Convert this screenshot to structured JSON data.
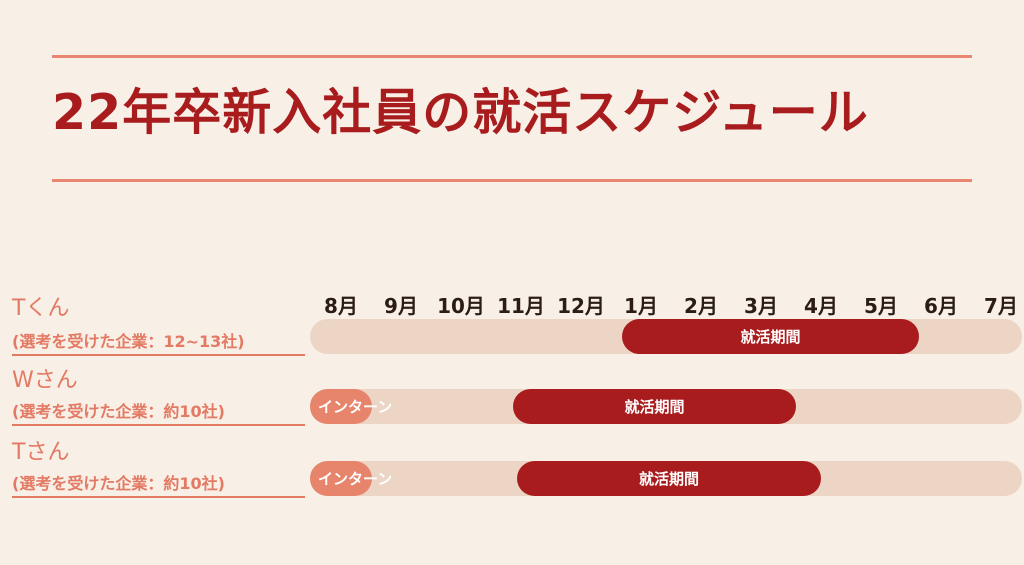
{
  "title": "22年卒新入社員の就活スケジュール",
  "months": [
    "8月",
    "9月",
    "10月",
    "11月",
    "12月",
    "1月",
    "2月",
    "3月",
    "4月",
    "5月",
    "6月",
    "7月"
  ],
  "persons": [
    {
      "name": "Tくん",
      "note": "(選考を受けた企業：12~13社)",
      "segments": [
        {
          "type": "job",
          "label": "就活期間",
          "start_month": "1月",
          "end_month": "5月"
        }
      ]
    },
    {
      "name": "Wさん",
      "note": "(選考を受けた企業：約10社)",
      "segments": [
        {
          "type": "intern",
          "label": "インターン",
          "start_month": "8月",
          "end_month": "8月"
        },
        {
          "type": "job",
          "label": "就活期間",
          "start_month": "11月",
          "end_month": "3月"
        }
      ]
    },
    {
      "name": "Tさん",
      "note": "(選考を受けた企業：約10社)",
      "segments": [
        {
          "type": "intern",
          "label": "インターン",
          "start_month": "8月",
          "end_month": "8月"
        },
        {
          "type": "job",
          "label": "就活期間",
          "start_month": "11月",
          "end_month": "4月"
        }
      ]
    }
  ],
  "colors": {
    "background": "#f8efe6",
    "title": "#a81c1e",
    "accent": "#e37a64",
    "job_bar": "#a81c1e",
    "intern_bar": "#e7846c",
    "track": "#ecd5c5"
  }
}
